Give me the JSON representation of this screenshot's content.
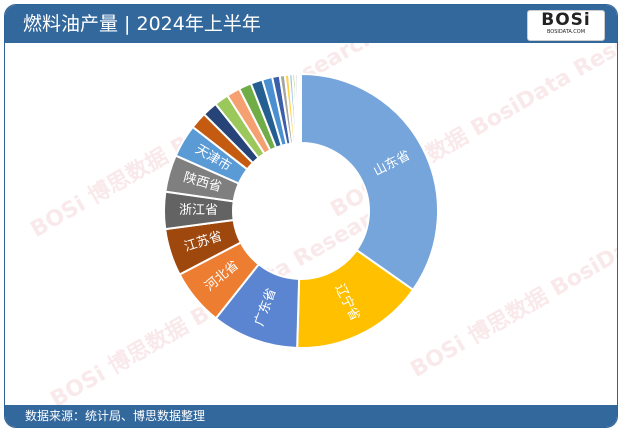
{
  "header": {
    "title": "燃料油产量 | 2024年上半年",
    "logo_text": "BOSi",
    "logo_sub": "BOSIDATA.COM"
  },
  "footer": {
    "source": "数据来源：统计局、博思数据整理"
  },
  "watermark": "BOSi 博思数据 BosiData Research",
  "chart_data": {
    "type": "pie",
    "donut": true,
    "title": "",
    "categories": [
      "山东省",
      "辽宁省",
      "广东省",
      "河北省",
      "江苏省",
      "浙江省",
      "陕西省",
      "天津市",
      "",
      "",
      "",
      "",
      "",
      "",
      "",
      "",
      "",
      "",
      "",
      "",
      "",
      "",
      ""
    ],
    "values": [
      35.0,
      15.8,
      10.3,
      6.7,
      5.6,
      4.4,
      4.4,
      3.9,
      2.0,
      1.8,
      1.7,
      1.6,
      1.5,
      1.4,
      1.2,
      0.9,
      0.6,
      0.5,
      0.4,
      0.3,
      0.3,
      0.2,
      0.2
    ],
    "colors": [
      "#75a5db",
      "#ffc000",
      "#5b84d1",
      "#ed7d31",
      "#9e480e",
      "#636363",
      "#7f7f7f",
      "#5b9bd5",
      "#c55a11",
      "#264478",
      "#9bc85a",
      "#f4a070",
      "#70ad47",
      "#255e91",
      "#4a8fd0",
      "#3a5ea8",
      "#a5a5a5",
      "#ffd24a",
      "#9dc3e6",
      "#8fbc5a",
      "#c9c9c9",
      "#7aa33c",
      "#e8e8e8"
    ],
    "label_color": "#ffffff"
  }
}
